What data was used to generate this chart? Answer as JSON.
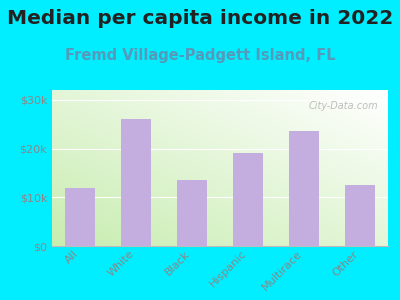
{
  "title": "Median per capita income in 2022",
  "subtitle": "Fremd Village-Padgett Island, FL",
  "categories": [
    "All",
    "White",
    "Black",
    "Hispanic",
    "Multirace",
    "Other"
  ],
  "values": [
    12000,
    26000,
    13500,
    19000,
    23500,
    12500
  ],
  "bar_color": "#c4aee0",
  "background_color": "#00eeff",
  "title_color": "#222222",
  "subtitle_color": "#5599bb",
  "tick_color": "#888888",
  "ylim": [
    0,
    32000
  ],
  "yticks": [
    0,
    10000,
    20000,
    30000
  ],
  "watermark": "City-Data.com",
  "title_fontsize": 14.5,
  "subtitle_fontsize": 10.5,
  "tick_fontsize": 8
}
